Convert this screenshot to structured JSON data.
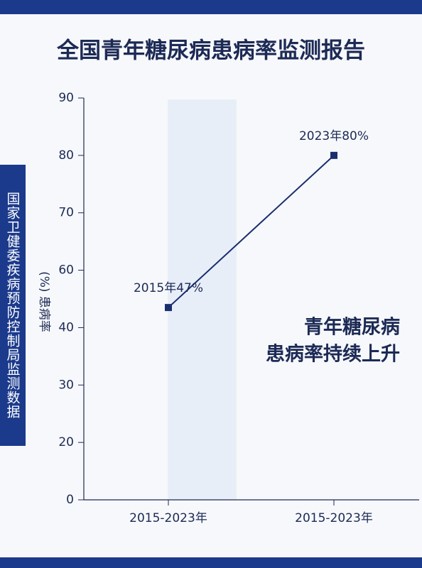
{
  "chart_data": {
    "type": "line",
    "title": "全国青年糖尿病患病率监测报告",
    "source": "国家卫健委疾病预防控制局监测数据",
    "y_label": "(%) 患病率",
    "annotation": [
      "青年糖尿病",
      "患病率持续上升"
    ],
    "categories": [
      "2015-2023年",
      "2015-2023年"
    ],
    "series": [
      {
        "name": "患病率",
        "color": "#1a2e6e",
        "values": [
          47,
          80
        ],
        "value_labels": [
          "2015年47%",
          "2023年80%"
        ]
      }
    ],
    "ylim": [
      0,
      90
    ],
    "yticks": [
      0,
      20,
      30,
      40,
      60,
      70,
      80,
      90
    ],
    "grid": false
  }
}
